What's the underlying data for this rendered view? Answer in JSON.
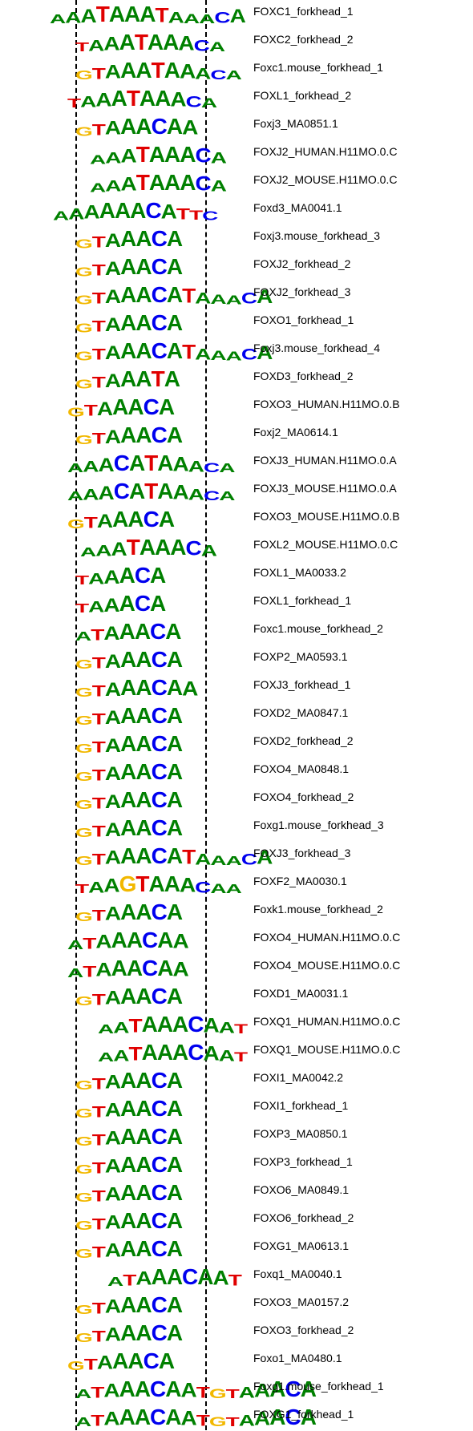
{
  "colors": {
    "A": "#008000",
    "C": "#0000ee",
    "G": "#f2b800",
    "T": "#e00000"
  },
  "motifs": [
    {
      "name": "FOXC1_forkhead_1",
      "logo": "AAATAAATAAACA"
    },
    {
      "name": "FOXC2_forkhead_2",
      "logo": "TAAATAAACA"
    },
    {
      "name": "Foxc1.mouse_forkhead_1",
      "logo": "GTAAATAAACA"
    },
    {
      "name": "FOXL1_forkhead_2",
      "logo": "TAAATAAACA"
    },
    {
      "name": "Foxj3_MA0851.1",
      "logo": "GTAAACAA"
    },
    {
      "name": "FOXJ2_HUMAN.H11MO.0.C",
      "logo": "AAATAAACA"
    },
    {
      "name": "FOXJ2_MOUSE.H11MO.0.C",
      "logo": "AAATAAACA"
    },
    {
      "name": "Foxd3_MA0041.1",
      "logo": "AAAAAACATTC"
    },
    {
      "name": "Foxj3.mouse_forkhead_3",
      "logo": "GTAAACA"
    },
    {
      "name": "FOXJ2_forkhead_2",
      "logo": "GTAAACA"
    },
    {
      "name": "FOXJ2_forkhead_3",
      "logo": "GTAAACATAAACA"
    },
    {
      "name": "FOXO1_forkhead_1",
      "logo": "GTAAACA"
    },
    {
      "name": "Foxj3.mouse_forkhead_4",
      "logo": "GTAAACATAAACA"
    },
    {
      "name": "FOXD3_forkhead_2",
      "logo": "GTAAATA"
    },
    {
      "name": "FOXO3_HUMAN.H11MO.0.B",
      "logo": "GTAAACA"
    },
    {
      "name": "Foxj2_MA0614.1",
      "logo": "GTAAACA"
    },
    {
      "name": "FOXJ3_HUMAN.H11MO.0.A",
      "logo": "AAACATAAACA"
    },
    {
      "name": "FOXJ3_MOUSE.H11MO.0.A",
      "logo": "AAACATAAACA"
    },
    {
      "name": "FOXO3_MOUSE.H11MO.0.B",
      "logo": "GTAAACA"
    },
    {
      "name": "FOXL2_MOUSE.H11MO.0.C",
      "logo": "AAATAAACA"
    },
    {
      "name": "FOXL1_MA0033.2",
      "logo": "TAAACA"
    },
    {
      "name": "FOXL1_forkhead_1",
      "logo": "TAAACA"
    },
    {
      "name": "Foxc1.mouse_forkhead_2",
      "logo": "ATAAACA"
    },
    {
      "name": "FOXP2_MA0593.1",
      "logo": "GTAAACA"
    },
    {
      "name": "FOXJ3_forkhead_1",
      "logo": "GTAAACAA"
    },
    {
      "name": "FOXD2_MA0847.1",
      "logo": "GTAAACA"
    },
    {
      "name": "FOXD2_forkhead_2",
      "logo": "GTAAACA"
    },
    {
      "name": "FOXO4_MA0848.1",
      "logo": "GTAAACA"
    },
    {
      "name": "FOXO4_forkhead_2",
      "logo": "GTAAACA"
    },
    {
      "name": "Foxg1.mouse_forkhead_3",
      "logo": "GTAAACA"
    },
    {
      "name": "FOXJ3_forkhead_3",
      "logo": "GTAAACATAAACA"
    },
    {
      "name": "FOXF2_MA0030.1",
      "logo": "TAAGTAAACAA"
    },
    {
      "name": "Foxk1.mouse_forkhead_2",
      "logo": "GTAAACA"
    },
    {
      "name": "FOXO4_HUMAN.H11MO.0.C",
      "logo": "ATAAACAA"
    },
    {
      "name": "FOXO4_MOUSE.H11MO.0.C",
      "logo": "ATAAACAA"
    },
    {
      "name": "FOXD1_MA0031.1",
      "logo": "GTAAACA"
    },
    {
      "name": "FOXQ1_HUMAN.H11MO.0.C",
      "logo": "AATAAACAAT"
    },
    {
      "name": "FOXQ1_MOUSE.H11MO.0.C",
      "logo": "AATAAACAAT"
    },
    {
      "name": "FOXI1_MA0042.2",
      "logo": "GTAAACA"
    },
    {
      "name": "FOXI1_forkhead_1",
      "logo": "GTAAACA"
    },
    {
      "name": "FOXP3_MA0850.1",
      "logo": "GTAAACA"
    },
    {
      "name": "FOXP3_forkhead_1",
      "logo": "GTAAACA"
    },
    {
      "name": "FOXO6_MA0849.1",
      "logo": "GTAAACA"
    },
    {
      "name": "FOXO6_forkhead_2",
      "logo": "GTAAACA"
    },
    {
      "name": "FOXG1_MA0613.1",
      "logo": "GTAAACA"
    },
    {
      "name": "Foxq1_MA0040.1",
      "logo": "ATAAACAAT"
    },
    {
      "name": "FOXO3_MA0157.2",
      "logo": "GTAAACA"
    },
    {
      "name": "FOXO3_forkhead_2",
      "logo": "GTAAACA"
    },
    {
      "name": "Foxo1_MA0480.1",
      "logo": "GTAAACA"
    },
    {
      "name": "Foxg1.mouse_forkhead_1",
      "logo": "ATAAACAATGTAAACA"
    },
    {
      "name": "FOXG1_forkhead_1",
      "logo": "ATAAACAATGTAAACA"
    }
  ]
}
